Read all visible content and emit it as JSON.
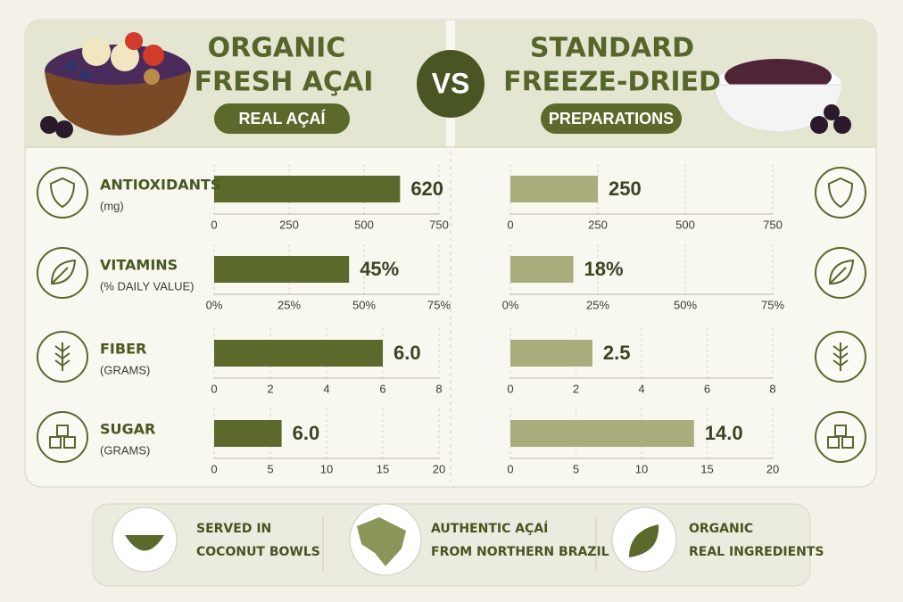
{
  "header": {
    "left_title": [
      "ORGANIC",
      "FRESH AÇAI"
    ],
    "left_badge": "REAL AÇAÍ",
    "vs": "VS",
    "right_title": [
      "STANDARD",
      "FREEZE-DRIED"
    ],
    "right_badge": "PREPARATIONS"
  },
  "chart_data": [
    {
      "type": "bar",
      "orientation": "horizontal",
      "title": "ANTIOXIDANTS",
      "subtitle": "(mg)",
      "values": [
        620
      ],
      "color": "#5b6a2b",
      "xlim": [
        0,
        750
      ],
      "xticks": [
        0,
        250,
        500,
        750
      ],
      "grid": true
    },
    {
      "type": "bar",
      "orientation": "horizontal",
      "title": "VITAMINS",
      "subtitle": "(% DAILY VALUE)",
      "values": [
        45
      ],
      "value_labels": [
        "45%"
      ],
      "color": "#5b6a2b",
      "xlim": [
        0,
        75
      ],
      "xticks": [
        {
          "value": 0,
          "label": "0%"
        },
        {
          "value": 25,
          "label": "25%"
        },
        {
          "value": 50,
          "label": "50%"
        },
        {
          "value": 75,
          "label": "75%"
        }
      ],
      "grid": true
    },
    {
      "type": "bar",
      "orientation": "horizontal",
      "title": "FIBER",
      "subtitle": "(GRAMS)",
      "values": [
        6
      ],
      "value_labels": [
        "6.0"
      ],
      "color": "#5b6a2b",
      "xlim": [
        0,
        8
      ],
      "xticks": [
        0,
        2,
        4,
        6,
        8
      ],
      "grid": true
    },
    {
      "type": "bar",
      "orientation": "horizontal",
      "title": "SUGAR",
      "subtitle": "(GRAMS)",
      "values": [
        6
      ],
      "value_labels": [
        "6.0"
      ],
      "color": "#5b6a2b",
      "xlim": [
        0,
        20
      ],
      "xticks": [
        0,
        5,
        10,
        15,
        20
      ],
      "grid": true
    },
    {
      "type": "bar",
      "orientation": "horizontal",
      "values": [
        250
      ],
      "color": "#a9ad7b",
      "xlim": [
        0,
        750
      ],
      "xticks": [
        0,
        250,
        500,
        750
      ],
      "grid": true
    },
    {
      "type": "bar",
      "orientation": "horizontal",
      "values": [
        18
      ],
      "value_labels": [
        "18%"
      ],
      "color": "#a9ad7b",
      "xlim": [
        0,
        75
      ],
      "xticks": [
        {
          "value": 0,
          "label": "0%"
        },
        {
          "value": 25,
          "label": "25%"
        },
        {
          "value": 50,
          "label": "50%"
        },
        {
          "value": 75,
          "label": "75%"
        }
      ],
      "grid": true
    },
    {
      "type": "bar",
      "orientation": "horizontal",
      "values": [
        2.5
      ],
      "color": "#a9ad7b",
      "xlim": [
        0,
        8
      ],
      "xticks": [
        0,
        2,
        4,
        6,
        8
      ],
      "grid": true
    },
    {
      "type": "bar",
      "orientation": "horizontal",
      "values": [
        14
      ],
      "value_labels": [
        "14.0"
      ],
      "color": "#a9ad7b",
      "xlim": [
        0,
        20
      ],
      "xticks": [
        0,
        5,
        10,
        15,
        20
      ],
      "grid": true
    }
  ],
  "footer": {
    "items": [
      {
        "lines": [
          "SERVED IN",
          "COCONUT BOWLS"
        ]
      },
      {
        "lines": [
          "AUTHENTIC AÇAÍ",
          "FROM NORTHERN BRAZIL"
        ]
      },
      {
        "lines": [
          "ORGANIC",
          "REAL INGREDIENTS"
        ]
      }
    ]
  }
}
